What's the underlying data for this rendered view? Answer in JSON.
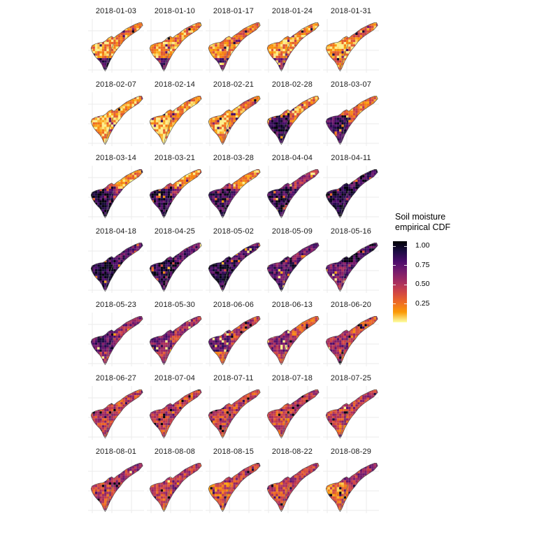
{
  "chart_data": {
    "type": "heatmap",
    "description": "Small-multiple raster maps of Somalia, one per weekly date, colored by soil moisture empirical CDF",
    "map_shape": "Somalia",
    "facet_grid": {
      "rows": 7,
      "cols": 5
    },
    "legend": {
      "title_line1": "Soil moisture",
      "title_line2": "empirical CDF",
      "ticks": [
        "1.00",
        "0.75",
        "0.50",
        "0.25"
      ],
      "tick_values": [
        1.0,
        0.75,
        0.5,
        0.25
      ],
      "range": [
        0,
        1
      ],
      "colormap": "inferno reversed (1.00 = black, 0 = pale yellow)",
      "colormap_stops": [
        "#000004",
        "#1b0c42",
        "#4b0c6b",
        "#781c6d",
        "#a52c60",
        "#cf4446",
        "#ed6925",
        "#fb9a06",
        "#fcffa4"
      ]
    },
    "facets": [
      {
        "date": "2018-01-03",
        "mean_cdf": {
          "north": 0.18,
          "horn": 0.22,
          "southwest": 0.15,
          "southeast": 0.15,
          "south_tip": 0.8
        }
      },
      {
        "date": "2018-01-10",
        "mean_cdf": {
          "north": 0.18,
          "horn": 0.2,
          "southwest": 0.18,
          "southeast": 0.15,
          "south_tip": 0.75
        }
      },
      {
        "date": "2018-01-17",
        "mean_cdf": {
          "north": 0.2,
          "horn": 0.22,
          "southwest": 0.18,
          "southeast": 0.18,
          "south_tip": 0.7
        }
      },
      {
        "date": "2018-01-24",
        "mean_cdf": {
          "north": 0.18,
          "horn": 0.2,
          "southwest": 0.15,
          "southeast": 0.18,
          "south_tip": 0.6
        }
      },
      {
        "date": "2018-01-31",
        "mean_cdf": {
          "north": 0.2,
          "horn": 0.25,
          "southwest": 0.12,
          "southeast": 0.15,
          "south_tip": 0.2
        }
      },
      {
        "date": "2018-02-07",
        "mean_cdf": {
          "north": 0.12,
          "horn": 0.15,
          "southwest": 0.07,
          "southeast": 0.1,
          "south_tip": 0.1
        }
      },
      {
        "date": "2018-02-14",
        "mean_cdf": {
          "north": 0.15,
          "horn": 0.18,
          "southwest": 0.1,
          "southeast": 0.15,
          "south_tip": 0.12
        }
      },
      {
        "date": "2018-02-21",
        "mean_cdf": {
          "north": 0.2,
          "horn": 0.22,
          "southwest": 0.12,
          "southeast": 0.2,
          "south_tip": 0.15
        }
      },
      {
        "date": "2018-02-28",
        "mean_cdf": {
          "north": 0.25,
          "horn": 0.22,
          "southwest": 0.85,
          "southeast": 0.3,
          "south_tip": 0.8
        }
      },
      {
        "date": "2018-03-07",
        "mean_cdf": {
          "north": 0.3,
          "horn": 0.25,
          "southwest": 0.8,
          "southeast": 0.35,
          "south_tip": 0.75
        }
      },
      {
        "date": "2018-03-14",
        "mean_cdf": {
          "north": 0.35,
          "horn": 0.18,
          "southwest": 0.9,
          "southeast": 0.5,
          "south_tip": 0.88
        }
      },
      {
        "date": "2018-03-21",
        "mean_cdf": {
          "north": 0.45,
          "horn": 0.15,
          "southwest": 0.85,
          "southeast": 0.6,
          "south_tip": 0.85
        }
      },
      {
        "date": "2018-03-28",
        "mean_cdf": {
          "north": 0.5,
          "horn": 0.2,
          "southwest": 0.8,
          "southeast": 0.65,
          "south_tip": 0.8
        }
      },
      {
        "date": "2018-04-04",
        "mean_cdf": {
          "north": 0.7,
          "horn": 0.5,
          "southwest": 0.85,
          "southeast": 0.75,
          "south_tip": 0.85
        }
      },
      {
        "date": "2018-04-11",
        "mean_cdf": {
          "north": 0.85,
          "horn": 0.8,
          "southwest": 0.9,
          "southeast": 0.85,
          "south_tip": 0.9
        }
      },
      {
        "date": "2018-04-18",
        "mean_cdf": {
          "north": 0.85,
          "horn": 0.75,
          "southwest": 0.9,
          "southeast": 0.85,
          "south_tip": 0.85
        }
      },
      {
        "date": "2018-04-25",
        "mean_cdf": {
          "north": 0.8,
          "horn": 0.7,
          "southwest": 0.88,
          "southeast": 0.82,
          "south_tip": 0.8
        }
      },
      {
        "date": "2018-05-02",
        "mean_cdf": {
          "north": 0.85,
          "horn": 0.75,
          "southwest": 0.85,
          "southeast": 0.85,
          "south_tip": 0.85
        }
      },
      {
        "date": "2018-05-09",
        "mean_cdf": {
          "north": 0.8,
          "horn": 0.65,
          "southwest": 0.7,
          "southeast": 0.8,
          "south_tip": 0.8
        }
      },
      {
        "date": "2018-05-16",
        "mean_cdf": {
          "north": 0.85,
          "horn": 0.8,
          "southwest": 0.65,
          "southeast": 0.8,
          "south_tip": 0.6
        }
      },
      {
        "date": "2018-05-23",
        "mean_cdf": {
          "north": 0.75,
          "horn": 0.55,
          "southwest": 0.75,
          "southeast": 0.55,
          "south_tip": 0.5
        }
      },
      {
        "date": "2018-05-30",
        "mean_cdf": {
          "north": 0.7,
          "horn": 0.5,
          "southwest": 0.65,
          "southeast": 0.45,
          "south_tip": 0.45
        }
      },
      {
        "date": "2018-06-06",
        "mean_cdf": {
          "north": 0.6,
          "horn": 0.4,
          "southwest": 0.65,
          "southeast": 0.4,
          "south_tip": 0.35
        }
      },
      {
        "date": "2018-06-13",
        "mean_cdf": {
          "north": 0.55,
          "horn": 0.35,
          "southwest": 0.6,
          "southeast": 0.45,
          "south_tip": 0.4
        }
      },
      {
        "date": "2018-06-20",
        "mean_cdf": {
          "north": 0.5,
          "horn": 0.35,
          "southwest": 0.55,
          "southeast": 0.35,
          "south_tip": 0.45
        }
      },
      {
        "date": "2018-06-27",
        "mean_cdf": {
          "north": 0.45,
          "horn": 0.4,
          "southwest": 0.45,
          "southeast": 0.4,
          "south_tip": 0.45
        }
      },
      {
        "date": "2018-07-04",
        "mean_cdf": {
          "north": 0.5,
          "horn": 0.35,
          "southwest": 0.45,
          "southeast": 0.55,
          "south_tip": 0.4
        }
      },
      {
        "date": "2018-07-11",
        "mean_cdf": {
          "north": 0.45,
          "horn": 0.4,
          "southwest": 0.4,
          "southeast": 0.4,
          "south_tip": 0.35
        }
      },
      {
        "date": "2018-07-18",
        "mean_cdf": {
          "north": 0.45,
          "horn": 0.45,
          "southwest": 0.35,
          "southeast": 0.45,
          "south_tip": 0.4
        }
      },
      {
        "date": "2018-07-25",
        "mean_cdf": {
          "north": 0.5,
          "horn": 0.45,
          "southwest": 0.4,
          "southeast": 0.35,
          "south_tip": 0.35
        }
      },
      {
        "date": "2018-08-01",
        "mean_cdf": {
          "north": 0.55,
          "horn": 0.5,
          "southwest": 0.4,
          "southeast": 0.45,
          "south_tip": 0.4
        }
      },
      {
        "date": "2018-08-08",
        "mean_cdf": {
          "north": 0.55,
          "horn": 0.45,
          "southwest": 0.4,
          "southeast": 0.6,
          "south_tip": 0.35
        }
      },
      {
        "date": "2018-08-15",
        "mean_cdf": {
          "north": 0.5,
          "horn": 0.45,
          "southwest": 0.3,
          "southeast": 0.4,
          "south_tip": 0.35
        }
      },
      {
        "date": "2018-08-22",
        "mean_cdf": {
          "north": 0.5,
          "horn": 0.45,
          "southwest": 0.35,
          "southeast": 0.4,
          "south_tip": 0.4
        }
      },
      {
        "date": "2018-08-29",
        "mean_cdf": {
          "north": 0.55,
          "horn": 0.5,
          "southwest": 0.25,
          "southeast": 0.45,
          "south_tip": 0.35
        }
      }
    ]
  },
  "colors": {
    "background": "#ffffff",
    "panel_grid": "#ebebeb",
    "map_outline": "#4d4d4d",
    "region_boundary": "#6f6f6f",
    "facet_title_text": "#1a1a1a",
    "legend_text": "#000000"
  }
}
